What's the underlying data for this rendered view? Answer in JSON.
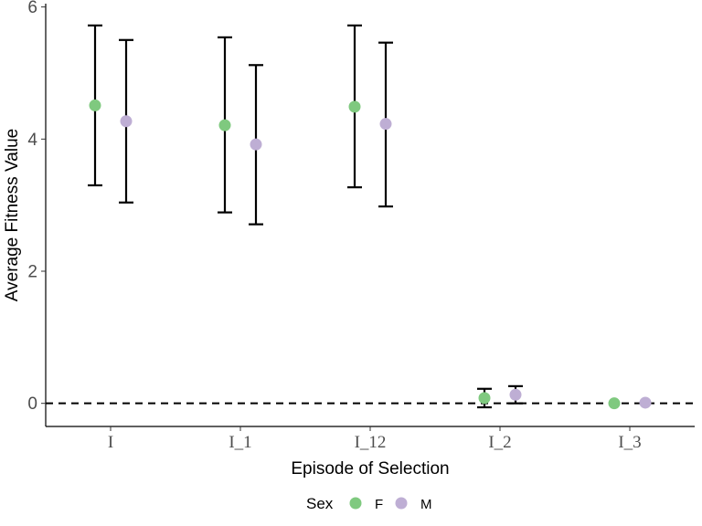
{
  "chart_data": {
    "type": "scatter",
    "subtype": "point-with-error-bars",
    "xlabel": "Episode of Selection",
    "ylabel": "Average Fitness Value",
    "categories": [
      "I",
      "I_1",
      "I_12",
      "I_2",
      "I_3"
    ],
    "ylim": [
      -0.35,
      6.05
    ],
    "yticks": [
      0,
      2,
      4,
      6
    ],
    "reference_line": {
      "y": 0,
      "style": "dashed"
    },
    "grid": false,
    "legend": {
      "title": "Sex",
      "position": "bottom",
      "entries": [
        "F",
        "M"
      ]
    },
    "series": [
      {
        "name": "F",
        "color": "#7fc97f",
        "points": [
          {
            "x": "I",
            "y": 4.51,
            "lower": 3.3,
            "upper": 5.72
          },
          {
            "x": "I_1",
            "y": 4.21,
            "lower": 2.89,
            "upper": 5.54
          },
          {
            "x": "I_12",
            "y": 4.49,
            "lower": 3.27,
            "upper": 5.72
          },
          {
            "x": "I_2",
            "y": 0.08,
            "lower": -0.06,
            "upper": 0.22
          },
          {
            "x": "I_3",
            "y": 0.0,
            "lower": 0.0,
            "upper": 0.0
          }
        ]
      },
      {
        "name": "M",
        "color": "#beaed4",
        "points": [
          {
            "x": "I",
            "y": 4.27,
            "lower": 3.04,
            "upper": 5.5
          },
          {
            "x": "I_1",
            "y": 3.92,
            "lower": 2.71,
            "upper": 5.12
          },
          {
            "x": "I_12",
            "y": 4.23,
            "lower": 2.98,
            "upper": 5.46
          },
          {
            "x": "I_2",
            "y": 0.13,
            "lower": 0.0,
            "upper": 0.26
          },
          {
            "x": "I_3",
            "y": 0.01,
            "lower": 0.01,
            "upper": 0.01
          }
        ]
      }
    ]
  }
}
